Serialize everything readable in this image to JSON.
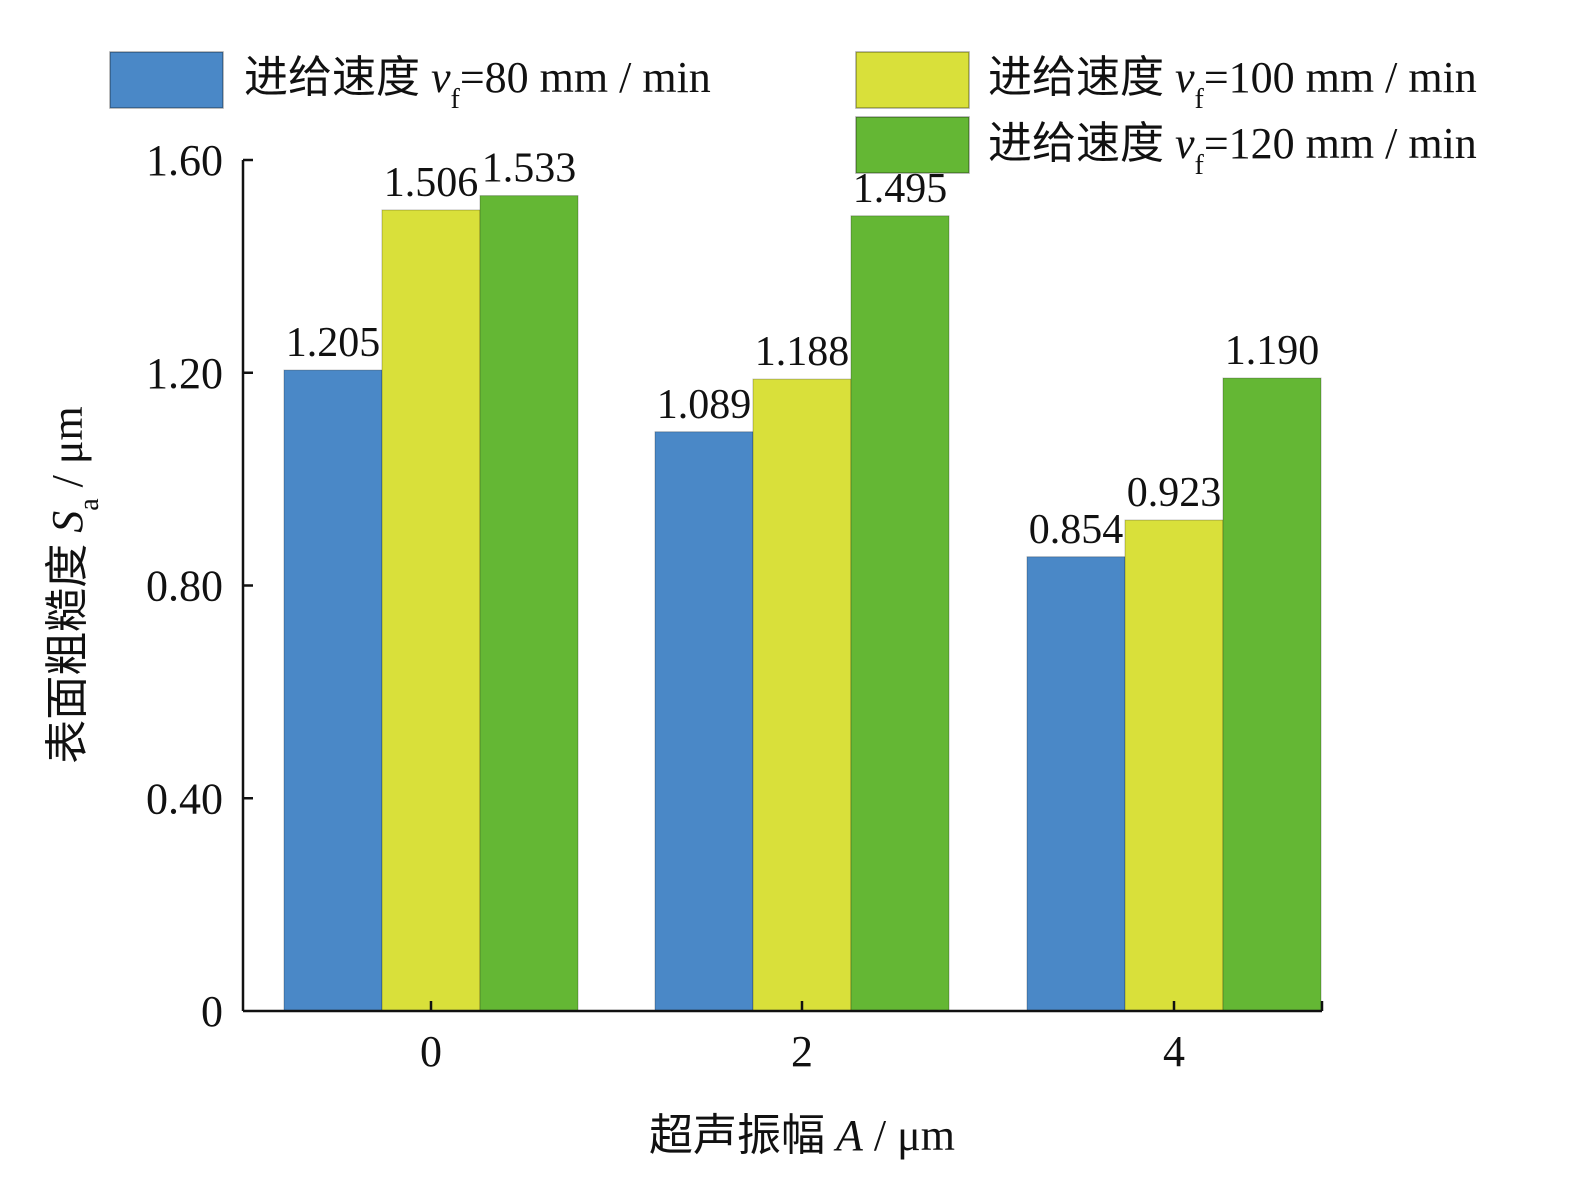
{
  "chart_data": {
    "type": "bar",
    "title": "",
    "xlabel": "超声振幅 A / μm",
    "xlabel_parts": {
      "prefix": "超声振幅 ",
      "var": "A",
      "suffix": " / μm"
    },
    "ylabel": "表面粗糙度 Sa / μm",
    "ylabel_parts": {
      "prefix": "表面粗糙度 ",
      "var": "S",
      "sub": "a",
      "suffix": " / μm"
    },
    "categories": [
      "0",
      "2",
      "4"
    ],
    "ylim": [
      0,
      1.6
    ],
    "yticks": [
      "0",
      "0.40",
      "0.80",
      "1.20",
      "1.60"
    ],
    "ytick_values": [
      0,
      0.4,
      0.8,
      1.2,
      1.6
    ],
    "grid": false,
    "legend_position": "top",
    "series": [
      {
        "name": "进给速度 vf=80 mm / min",
        "name_parts": {
          "prefix": "进给速度 ",
          "var": "v",
          "sub": "f",
          "suffix": "=80 mm / min"
        },
        "values": [
          1.205,
          1.089,
          0.854
        ],
        "labels": [
          "1.205",
          "1.089",
          "0.854"
        ],
        "color": "#4a88c7"
      },
      {
        "name": "进给速度 vf=100 mm / min",
        "name_parts": {
          "prefix": "进给速度 ",
          "var": "v",
          "sub": "f",
          "suffix": "=100 mm / min"
        },
        "values": [
          1.506,
          1.188,
          0.923
        ],
        "labels": [
          "1.506",
          "1.188",
          "0.923"
        ],
        "color": "#d9e03a"
      },
      {
        "name": "进给速度 vf=120 mm / min",
        "name_parts": {
          "prefix": "进给速度 ",
          "var": "v",
          "sub": "f",
          "suffix": "=120 mm / min"
        },
        "values": [
          1.533,
          1.495,
          1.19
        ],
        "labels": [
          "1.533",
          "1.495",
          "1.190"
        ],
        "color": "#64b734"
      }
    ]
  }
}
